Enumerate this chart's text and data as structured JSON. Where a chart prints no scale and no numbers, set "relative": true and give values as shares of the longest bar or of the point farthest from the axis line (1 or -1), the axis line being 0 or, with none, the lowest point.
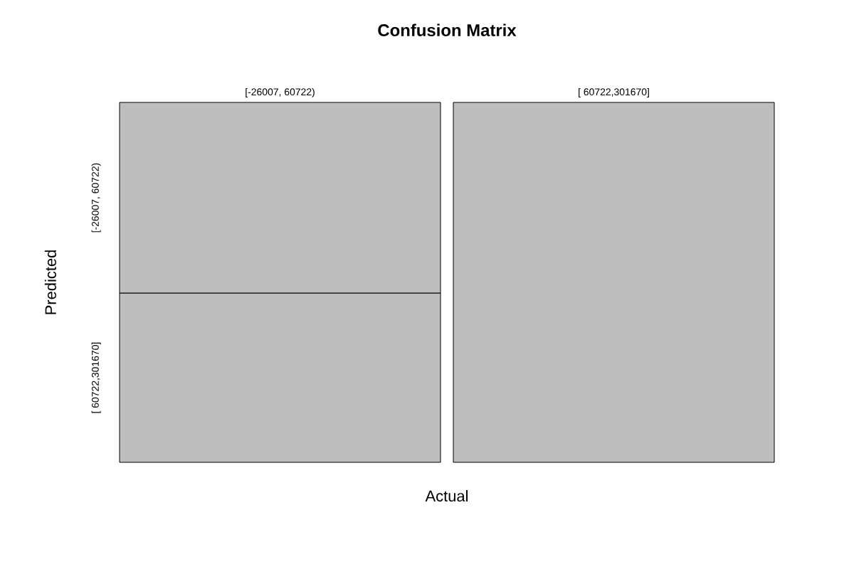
{
  "chart_data": {
    "type": "bar",
    "title": "Confusion Matrix",
    "xlabel": "Actual",
    "ylabel": "Predicted",
    "categories": [
      "[-26007, 60722)",
      "[ 60722,301670]"
    ],
    "stacked": true,
    "relative": true,
    "series": [
      {
        "name": "[ 60722,301670]",
        "color": "#bebebe",
        "values": [
          0.47,
          1
        ]
      },
      {
        "name": "[-26007, 60722)",
        "color": "#bebebe",
        "values": [
          0.53,
          0
        ]
      }
    ]
  }
}
